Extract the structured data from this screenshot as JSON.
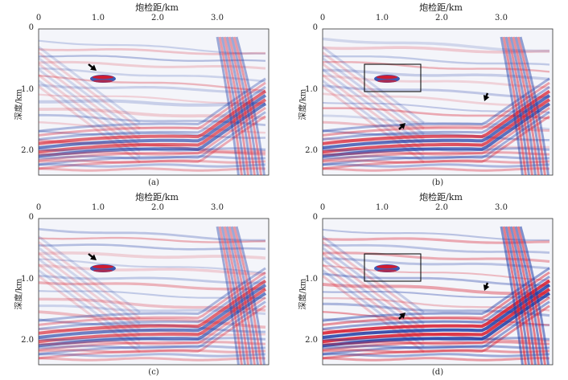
{
  "figure": {
    "panels": [
      {
        "id": "a",
        "x_title": "炮检距/km",
        "y_title": "深度/km",
        "x_ticks": [
          "0",
          "1.0",
          "2.0",
          "3.0"
        ],
        "y_ticks": [
          "0",
          "1.0",
          "2.0"
        ],
        "caption": "(a)",
        "boxed_region": false,
        "arrow_count": 1
      },
      {
        "id": "b",
        "x_title": "炮检距/km",
        "y_title": "深度/km",
        "x_ticks": [
          "0",
          "1.0",
          "2.0",
          "3.0"
        ],
        "y_ticks": [
          "0",
          "1.0",
          "2.0"
        ],
        "caption": "(b)",
        "boxed_region": true,
        "arrow_count": 2
      },
      {
        "id": "c",
        "x_title": "炮检距/km",
        "y_title": "深度/km",
        "x_ticks": [
          "0",
          "1.0",
          "2.0",
          "3.0"
        ],
        "y_ticks": [
          "0",
          "1.0",
          "2.0"
        ],
        "caption": "(c)",
        "boxed_region": false,
        "arrow_count": 1
      },
      {
        "id": "d",
        "x_title": "炮检距/km",
        "y_title": "深度/km",
        "x_ticks": [
          "0",
          "1.0",
          "2.0",
          "3.0"
        ],
        "y_ticks": [
          "0",
          "1.0",
          "2.0"
        ],
        "caption": "(d)",
        "boxed_region": true,
        "arrow_count": 2
      }
    ],
    "colors": {
      "positive": "#d7192b",
      "negative": "#1f3da6",
      "background": "#ffffff"
    }
  }
}
